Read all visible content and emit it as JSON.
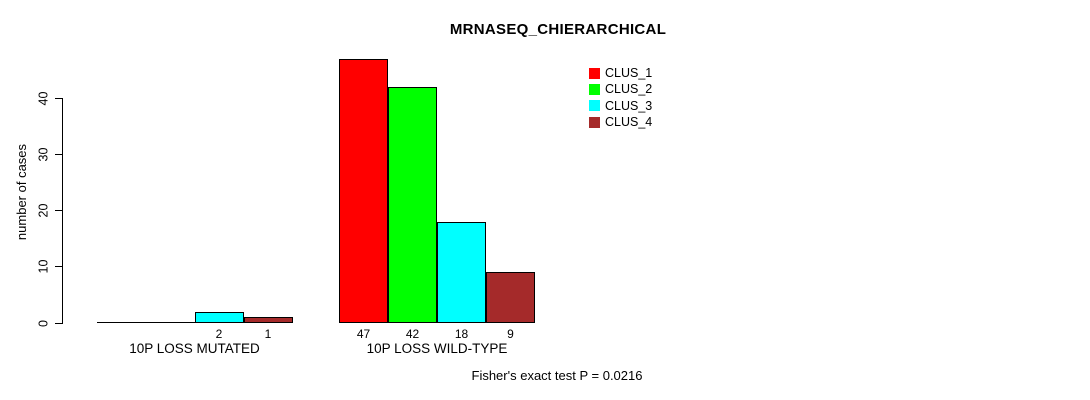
{
  "chart_data": {
    "type": "bar",
    "title": "MRNASEQ_CHIERARCHICAL",
    "ylabel": "number of cases",
    "xlabel": "",
    "ylim": [
      0,
      47
    ],
    "yticks": [
      0,
      10,
      20,
      30,
      40
    ],
    "grid": false,
    "categories": [
      "10P LOSS MUTATED",
      "10P LOSS WILD-TYPE"
    ],
    "series": [
      {
        "name": "CLUS_1",
        "color": "#FF0000",
        "values": [
          0,
          47
        ]
      },
      {
        "name": "CLUS_2",
        "color": "#00FF00",
        "values": [
          0,
          42
        ]
      },
      {
        "name": "CLUS_3",
        "color": "#00FFFF",
        "values": [
          2,
          18
        ]
      },
      {
        "name": "CLUS_4",
        "color": "#A52A2A",
        "values": [
          1,
          9
        ]
      }
    ],
    "bar_value_labels": [
      [
        "",
        "",
        "2",
        "1"
      ],
      [
        "47",
        "42",
        "18",
        "9"
      ]
    ],
    "legend": {
      "position": "top-right",
      "entries": [
        "CLUS_1",
        "CLUS_2",
        "CLUS_3",
        "CLUS_4"
      ]
    },
    "annotation": "Fisher's exact test P = 0.0216",
    "background_color": "#FFFFFF",
    "axis_color": "#000000"
  }
}
